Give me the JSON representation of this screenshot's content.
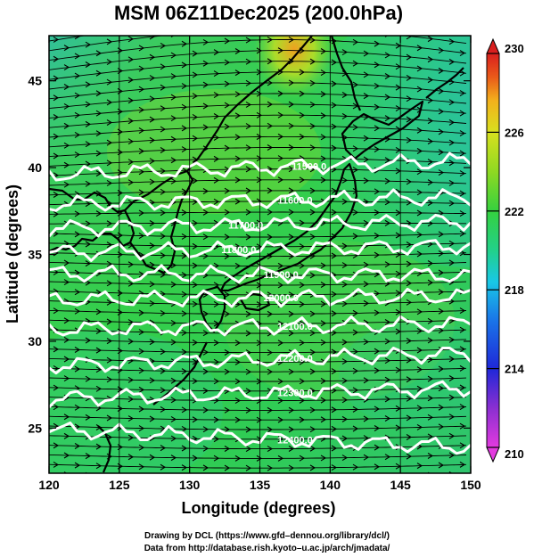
{
  "chart_data": {
    "type": "heatmap",
    "title": "MSM 06Z11Dec2025 (200.0hPa)",
    "xlabel": "Longitude (degrees)",
    "ylabel": "Latitude  (degrees)",
    "xlim": [
      120,
      150
    ],
    "ylim": [
      22.4,
      47.6
    ],
    "x_ticks": [
      120,
      125,
      130,
      135,
      140,
      145,
      150
    ],
    "y_ticks": [
      25,
      30,
      35,
      40,
      45
    ],
    "colorbar": {
      "min": 210,
      "max": 230,
      "ticks": [
        210,
        214,
        218,
        222,
        226,
        230
      ],
      "colors": [
        "#e23adf",
        "#8a2fd1",
        "#1f28d8",
        "#1a73e8",
        "#19c8e6",
        "#22d08a",
        "#35d13f",
        "#8fd922",
        "#d8e01f",
        "#f3b11c",
        "#ea5a19",
        "#d91f1f"
      ]
    },
    "field_description": "temperature (K) shaded, geopotential height (m) contoured in white, wind vectors in black",
    "contours": [
      {
        "level": "11500.0",
        "lat_at_120": 39.6,
        "lat_at_150": 40.4,
        "label_lon": 138.5
      },
      {
        "level": "11600.0",
        "lat_at_120": 37.9,
        "lat_at_150": 38.3,
        "label_lon": 137.5
      },
      {
        "level": "11700.0",
        "lat_at_120": 36.5,
        "lat_at_150": 36.9,
        "label_lon": 134.0
      },
      {
        "level": "11800.0",
        "lat_at_120": 35.1,
        "lat_at_150": 35.5,
        "label_lon": 133.5
      },
      {
        "level": "11900.0",
        "lat_at_120": 33.9,
        "lat_at_150": 33.8,
        "label_lon": 136.5
      },
      {
        "level": "12000.0",
        "lat_at_120": 32.4,
        "lat_at_150": 32.6,
        "label_lon": 136.5
      },
      {
        "level": "12100.0",
        "lat_at_120": 30.7,
        "lat_at_150": 31.0,
        "label_lon": 137.5
      },
      {
        "level": "12200.0",
        "lat_at_120": 28.6,
        "lat_at_150": 29.3,
        "label_lon": 137.5
      },
      {
        "level": "12300.0",
        "lat_at_120": 26.7,
        "lat_at_150": 27.3,
        "label_lon": 137.5
      },
      {
        "level": "12400.0",
        "lat_at_120": 24.9,
        "lat_at_150": 23.9,
        "label_lon": 137.5
      }
    ],
    "grid": false,
    "colorbar_position": "right",
    "wind_direction": "west-to-east (westerly jet)"
  },
  "credits": {
    "line1": "Drawing by DCL (https://www.gfd–dennou.org/library/dcl/)",
    "line2": "Data from http://database.rish.kyoto–u.ac.jp/arch/jmadata/"
  }
}
